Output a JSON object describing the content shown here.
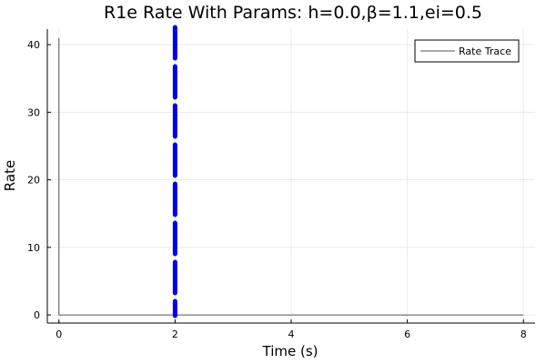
{
  "chart_data": {
    "type": "line",
    "title": "R1e Rate With Params: h=0.0,β=1.1,ei=0.5",
    "xlabel": "Time (s)",
    "ylabel": "Rate",
    "xlim": [
      -0.2,
      8.2
    ],
    "ylim": [
      -1.2,
      42.3
    ],
    "xticks": [
      0,
      2,
      4,
      6,
      8
    ],
    "yticks": [
      0,
      10,
      20,
      30,
      40
    ],
    "xtick_labels": [
      "0",
      "2",
      "4",
      "6",
      "8"
    ],
    "ytick_labels": [
      "0",
      "10",
      "20",
      "30",
      "40"
    ],
    "grid": true,
    "legend_position": "top-right",
    "series": [
      {
        "name": "Rate Trace",
        "color": "#555555",
        "x": [
          0,
          0,
          8
        ],
        "y": [
          41,
          0,
          0
        ]
      }
    ],
    "vlines": [
      {
        "x": 2,
        "color": "#0000ee",
        "style": "dashed"
      }
    ]
  }
}
